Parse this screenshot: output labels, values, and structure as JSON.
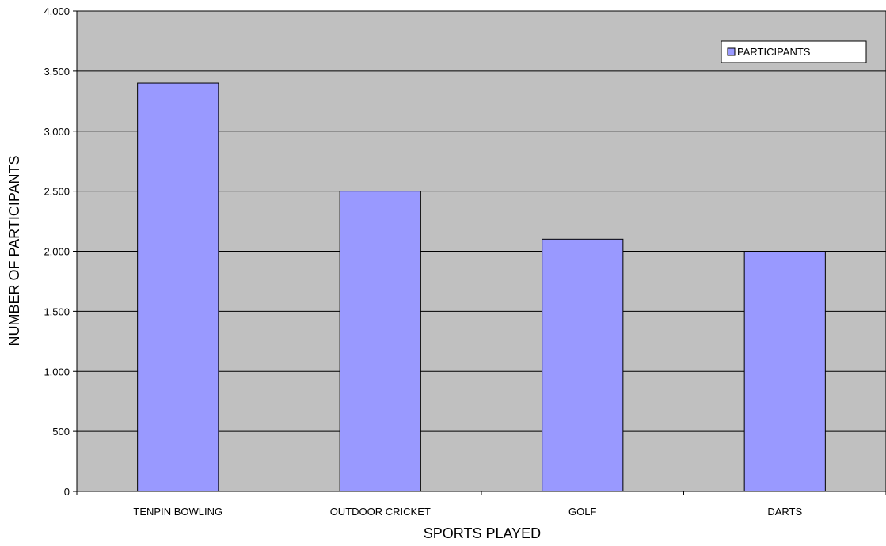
{
  "chart_data": {
    "type": "bar",
    "categories": [
      "TENPIN BOWLING",
      "OUTDOOR CRICKET",
      "GOLF",
      "DARTS"
    ],
    "series": [
      {
        "name": "PARTICIPANTS",
        "values": [
          3400,
          2500,
          2100,
          2000
        ]
      }
    ],
    "xlabel": "SPORTS PLAYED",
    "ylabel": "NUMBER OF PARTICIPANTS",
    "ylim": [
      0,
      4000
    ],
    "yticks": [
      0,
      500,
      1000,
      1500,
      2000,
      2500,
      3000,
      3500,
      4000
    ],
    "ytick_labels": [
      "0",
      "500",
      "1,000",
      "1,500",
      "2,000",
      "2,500",
      "3,000",
      "3,500",
      "4,000"
    ],
    "grid": true,
    "legend_position": "top-right",
    "colors": {
      "plot_background": "#c0c0c0",
      "bar_fill": "#9999ff",
      "bar_stroke": "#000000",
      "gridline": "#000000"
    }
  }
}
